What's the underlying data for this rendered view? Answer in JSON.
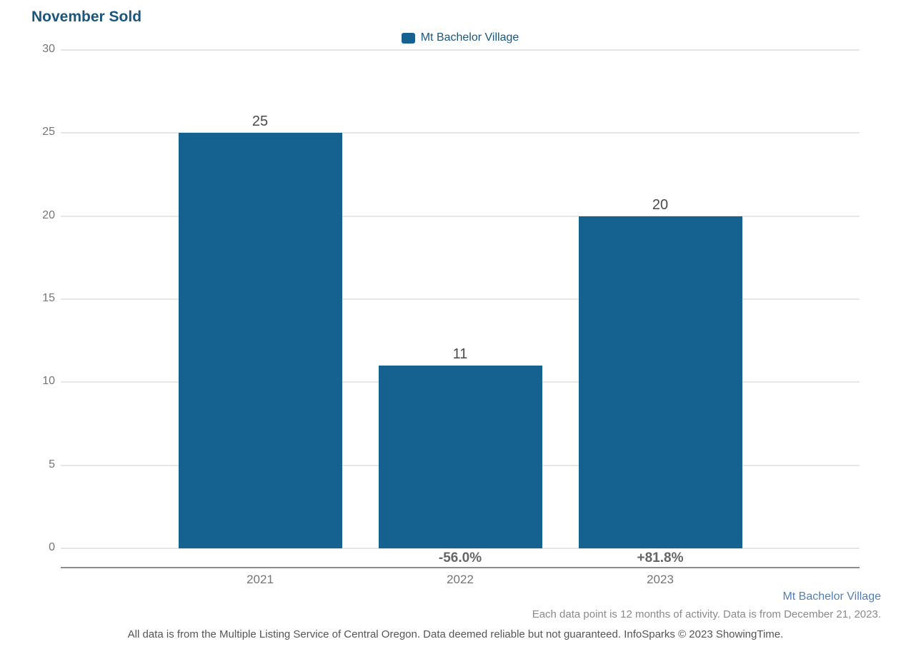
{
  "title": "November Sold",
  "legend": {
    "label": "Mt Bachelor Village",
    "swatch_color": "#15618f"
  },
  "chart_data": {
    "type": "bar",
    "title": "November Sold",
    "categories": [
      "2021",
      "2022",
      "2023"
    ],
    "series": [
      {
        "name": "Mt Bachelor Village",
        "values": [
          25,
          11,
          20
        ]
      }
    ],
    "value_labels": [
      "25",
      "11",
      "20"
    ],
    "pct_change_labels": [
      "",
      "-56.0%",
      "+81.8%"
    ],
    "xlabel": "",
    "ylabel": "",
    "ylim": [
      0,
      30
    ],
    "yticks": [
      0,
      5,
      10,
      15,
      20,
      25,
      30
    ],
    "grid": true,
    "legend_position": "top-center",
    "bar_color": "#15618f"
  },
  "footer": {
    "series_label": "Mt Bachelor Village",
    "data_note": "Each data point is 12 months of activity. Data is from December 21, 2023.",
    "disclaimer": "All data is from the Multiple Listing Service of Central Oregon. Data deemed reliable but not guaranteed. InfoSparks © 2023 ShowingTime."
  },
  "colors": {
    "title_text": "#1c567c",
    "legend_text": "#1c567c",
    "bar": "#15618f",
    "value_label": "#4a4a4a",
    "pct_label": "#666666",
    "tick_label": "#757575",
    "gridline": "#e7e7e7",
    "axis_line": "#8a8a8a",
    "footer_series": "#527fb6",
    "footer_note": "#8a8a8a",
    "footer_disclaimer": "#555555"
  }
}
